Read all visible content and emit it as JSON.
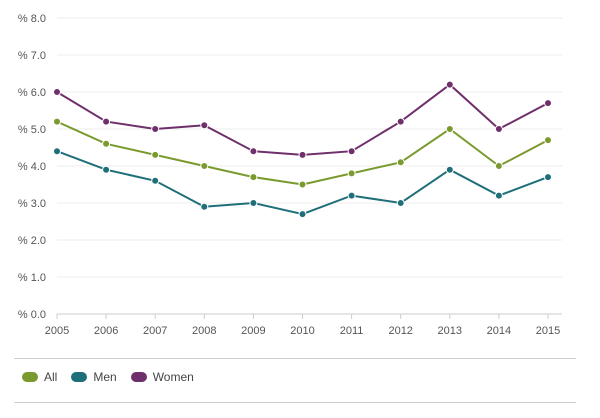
{
  "chart_data": {
    "type": "line",
    "title": "",
    "xlabel": "",
    "ylabel": "",
    "x": [
      "2005",
      "2006",
      "2007",
      "2008",
      "2009",
      "2010",
      "2011",
      "2012",
      "2013",
      "2014",
      "2015"
    ],
    "ylim": [
      0,
      8
    ],
    "yticks": [
      0,
      1,
      2,
      3,
      4,
      5,
      6,
      7,
      8
    ],
    "ytick_labels": [
      "% 0.0",
      "% 1.0",
      "% 2.0",
      "% 3.0",
      "% 4.0",
      "% 5.0",
      "% 6.0",
      "% 7.0",
      "% 8.0"
    ],
    "grid": "horizontal",
    "legend_position": "bottom-left",
    "series": [
      {
        "name": "All",
        "color": "#7a9a2e",
        "values": [
          5.2,
          4.6,
          4.3,
          4.0,
          3.7,
          3.5,
          3.8,
          4.1,
          5.0,
          4.0,
          4.7
        ]
      },
      {
        "name": "Men",
        "color": "#1f6f7a",
        "values": [
          4.4,
          3.9,
          3.6,
          2.9,
          3.0,
          2.7,
          3.2,
          3.0,
          3.9,
          3.2,
          3.7
        ]
      },
      {
        "name": "Women",
        "color": "#6f2f6b",
        "values": [
          6.0,
          5.2,
          5.0,
          5.1,
          4.4,
          4.3,
          4.4,
          5.2,
          6.2,
          5.0,
          5.7
        ]
      }
    ]
  }
}
